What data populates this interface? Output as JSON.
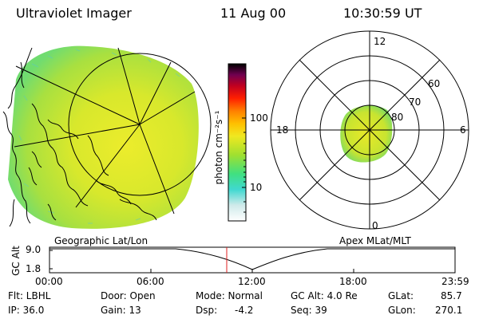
{
  "header": {
    "instrument": "Ultraviolet Imager",
    "date": "11 Aug 00",
    "time": "10:30:59 UT"
  },
  "colorbar": {
    "label": "photon cm⁻²s⁻¹",
    "tick_labels": [
      "100",
      "10"
    ],
    "colors": [
      "#ffffff",
      "#cfeaea",
      "#80e8d8",
      "#20d8c8",
      "#40e080",
      "#90e030",
      "#c8e820",
      "#f0e820",
      "#ffc000",
      "#ff8000",
      "#ff2000",
      "#d00020",
      "#900040",
      "#400040",
      "#000000"
    ]
  },
  "geo_panel": {
    "label": "Geographic Lat/Lon"
  },
  "polar_panel": {
    "label": "Apex MLat/MLT",
    "mlt_labels": {
      "top": "12",
      "left": "18",
      "right": "6",
      "bottom": "0"
    },
    "lat_labels": [
      "60",
      "70",
      "80"
    ]
  },
  "altitude_plot": {
    "ylabel": "GC Alt",
    "yticks": [
      "9.0",
      "1.8"
    ],
    "xticks": [
      "00:00",
      "06:00",
      "12:00",
      "18:00",
      "23:59"
    ],
    "current_time_marker": "10:31"
  },
  "info": {
    "filter": "Flt: LBHL",
    "ip": "IP: 36.0",
    "door": "Door: Open",
    "gain": "Gain: 13",
    "mode": "Mode: Normal",
    "dsp_label": "Dsp:",
    "dsp_value": "-4.2",
    "gc_alt": "GC Alt: 4.0 Re",
    "seq": "Seq: 39",
    "glat_label": "GLat:",
    "glat_value": "85.7",
    "glon_label": "GLon:",
    "glon_value": "270.1"
  }
}
